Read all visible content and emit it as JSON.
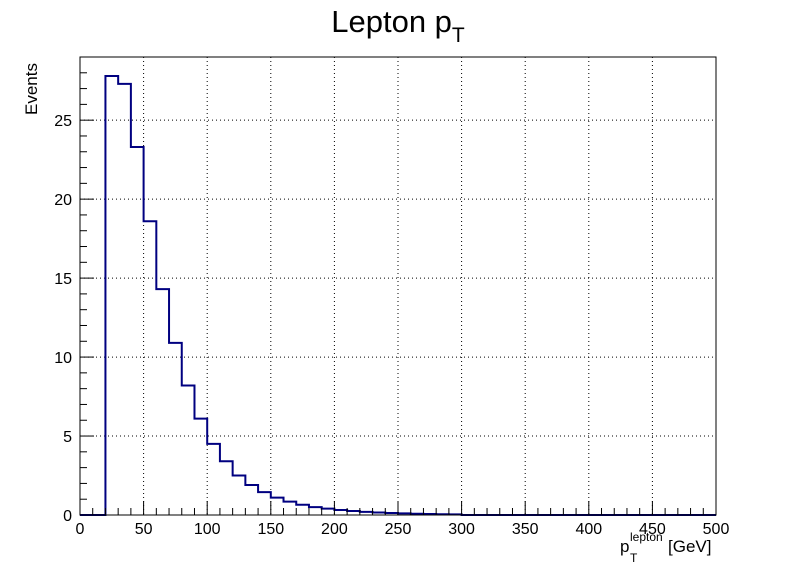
{
  "chart_data": {
    "type": "histogram",
    "title": {
      "main": "Lepton p",
      "sub": "T"
    },
    "xlabel": {
      "main": "p",
      "sub": "T",
      "sup": "lepton",
      "unit": "[GeV]"
    },
    "ylabel": "Events",
    "xlim": [
      0,
      500
    ],
    "ylim": [
      0,
      29
    ],
    "grid": true,
    "x_ticks": [
      0,
      50,
      100,
      150,
      200,
      250,
      300,
      350,
      400,
      450,
      500
    ],
    "x_tick_labels": [
      "0",
      "50",
      "100",
      "150",
      "200",
      "250",
      "300",
      "350",
      "400",
      "450",
      "500"
    ],
    "y_ticks": [
      0,
      5,
      10,
      15,
      20,
      25
    ],
    "y_tick_labels": [
      "0",
      "5",
      "10",
      "15",
      "20",
      "25"
    ],
    "bin_width": 10,
    "bin_edges_start": 0,
    "values": [
      0,
      0,
      27.8,
      27.3,
      23.3,
      18.6,
      14.3,
      10.9,
      8.2,
      6.1,
      4.5,
      3.4,
      2.5,
      1.9,
      1.45,
      1.1,
      0.85,
      0.65,
      0.5,
      0.4,
      0.32,
      0.25,
      0.2,
      0.16,
      0.13,
      0.1,
      0.08,
      0.06,
      0.05,
      0.04,
      0,
      0,
      0,
      0,
      0,
      0,
      0,
      0,
      0,
      0,
      0,
      0,
      0,
      0,
      0,
      0,
      0,
      0,
      0,
      0
    ],
    "line_color": "#000080"
  }
}
